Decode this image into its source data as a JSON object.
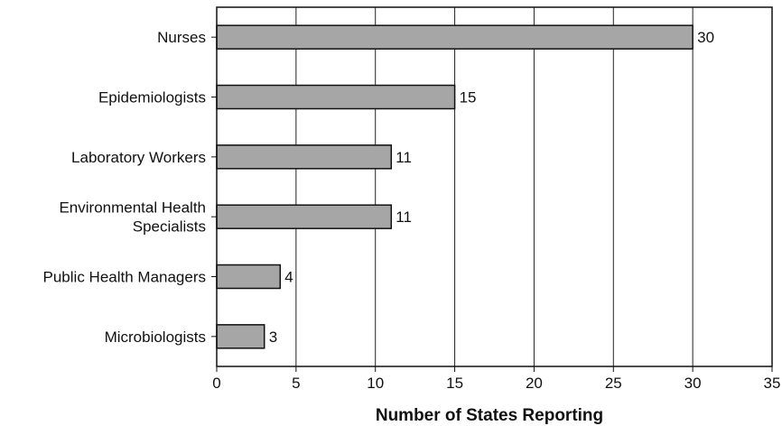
{
  "chart_data": {
    "type": "bar",
    "orientation": "horizontal",
    "title": "",
    "xlabel": "Number of States Reporting",
    "ylabel": "",
    "categories": [
      [
        "Nurses"
      ],
      [
        "Epidemiologists"
      ],
      [
        "Laboratory Workers"
      ],
      [
        "Environmental Health",
        "Specialists"
      ],
      [
        "Public Health Managers"
      ],
      [
        "Microbiologists"
      ]
    ],
    "values": [
      30,
      15,
      11,
      11,
      4,
      3
    ],
    "xlim": [
      0,
      35
    ],
    "xticks": [
      "0",
      "5",
      "10",
      "15",
      "20",
      "25",
      "30",
      "35"
    ],
    "grid": "vertical",
    "bar_color": "#a6a6a6",
    "bar_edge_color": "#111111",
    "show_value_labels": true
  }
}
